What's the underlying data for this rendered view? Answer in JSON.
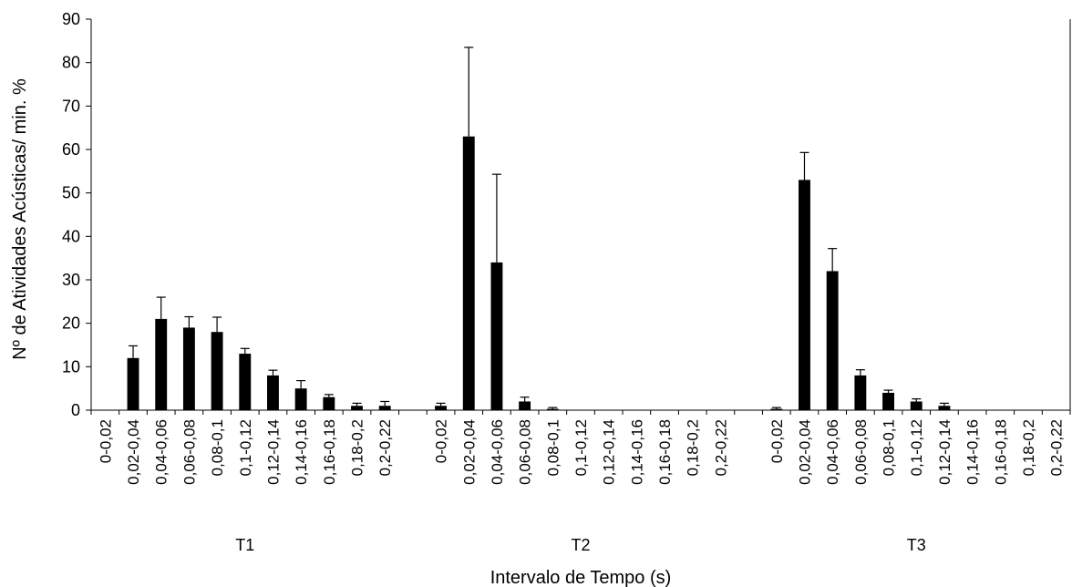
{
  "chart_data": {
    "type": "bar",
    "title": "",
    "xlabel": "Intervalo de Tempo (s)",
    "ylabel": "Nº de Atividades Acústicas/ min. %",
    "ylim": [
      0,
      90
    ],
    "yticks": [
      0,
      10,
      20,
      30,
      40,
      50,
      60,
      70,
      80,
      90
    ],
    "grid": false,
    "legend": "none",
    "bar_color": "#000000",
    "error_bars": true,
    "categories": [
      "0-0,02",
      "0,02-0,04",
      "0,04-0,06",
      "0,06-0,08",
      "0,08-0,1",
      "0,1-0,12",
      "0,12-0,14",
      "0,14-0,16",
      "0,16-0,18",
      "0,18-0,2",
      "0,2-0,22"
    ],
    "groups": [
      {
        "name": "T1",
        "values": [
          0,
          12,
          21,
          19,
          18,
          13,
          8,
          5,
          3,
          1,
          1
        ],
        "errors": [
          0,
          2.8,
          5,
          2.5,
          3.4,
          1.2,
          1.2,
          1.8,
          0.6,
          0.6,
          1
        ]
      },
      {
        "name": "T2",
        "values": [
          1,
          63,
          34,
          2,
          0.3,
          0,
          0,
          0,
          0,
          0,
          0
        ],
        "errors": [
          0.6,
          20.5,
          20.3,
          1,
          0.3,
          0,
          0,
          0,
          0,
          0,
          0
        ]
      },
      {
        "name": "T3",
        "values": [
          0.3,
          53,
          32,
          8,
          4,
          2,
          1,
          0,
          0,
          0,
          0
        ],
        "errors": [
          0.3,
          6.3,
          5.2,
          1.3,
          0.6,
          0.6,
          0.6,
          0,
          0,
          0,
          0
        ]
      }
    ]
  }
}
